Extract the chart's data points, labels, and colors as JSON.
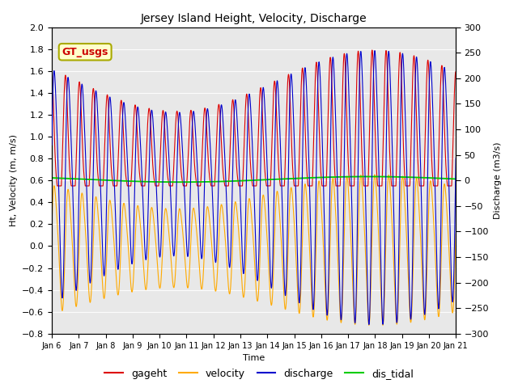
{
  "title": "Jersey Island Height, Velocity, Discharge",
  "ylabel_left": "Ht, Velocity (m, m/s)",
  "ylabel_right": "Discharge (m3/s)",
  "xlabel": "Time",
  "ylim_left": [
    -0.8,
    2.0
  ],
  "ylim_right": [
    -300,
    300
  ],
  "xlim": [
    0,
    15
  ],
  "xtick_labels": [
    "Jan 6",
    "Jan 7",
    "Jan 8",
    "Jan 9",
    "Jan 10",
    "Jan 11",
    "Jan 12",
    "Jan 13",
    "Jan 14",
    "Jan 15",
    "Jan 16",
    "Jan 17",
    "Jan 18",
    "Jan 19",
    "Jan 20",
    "Jan 21"
  ],
  "color_gageht": "#dd0000",
  "color_velocity": "#ffaa00",
  "color_discharge": "#0000cc",
  "color_dis_tidal": "#00cc00",
  "legend_labels": [
    "gageht",
    "velocity",
    "discharge",
    "dis_tidal"
  ],
  "annotation_text": "GT_usgs",
  "annotation_color": "#cc0000",
  "annotation_bg": "#ffffcc",
  "annotation_border": "#aaaa00",
  "background_color": "#e8e8e8",
  "tidal_period_hours": 12.42,
  "n_days": 15,
  "samples_per_day": 240,
  "gageht_mean": 0.62,
  "gageht_amp1": 0.65,
  "gageht_amp2": 0.15,
  "velocity_amp": 0.63,
  "discharge_amp": 245,
  "dis_tidal_mean": 0.61,
  "dis_tidal_amp": 0.025
}
